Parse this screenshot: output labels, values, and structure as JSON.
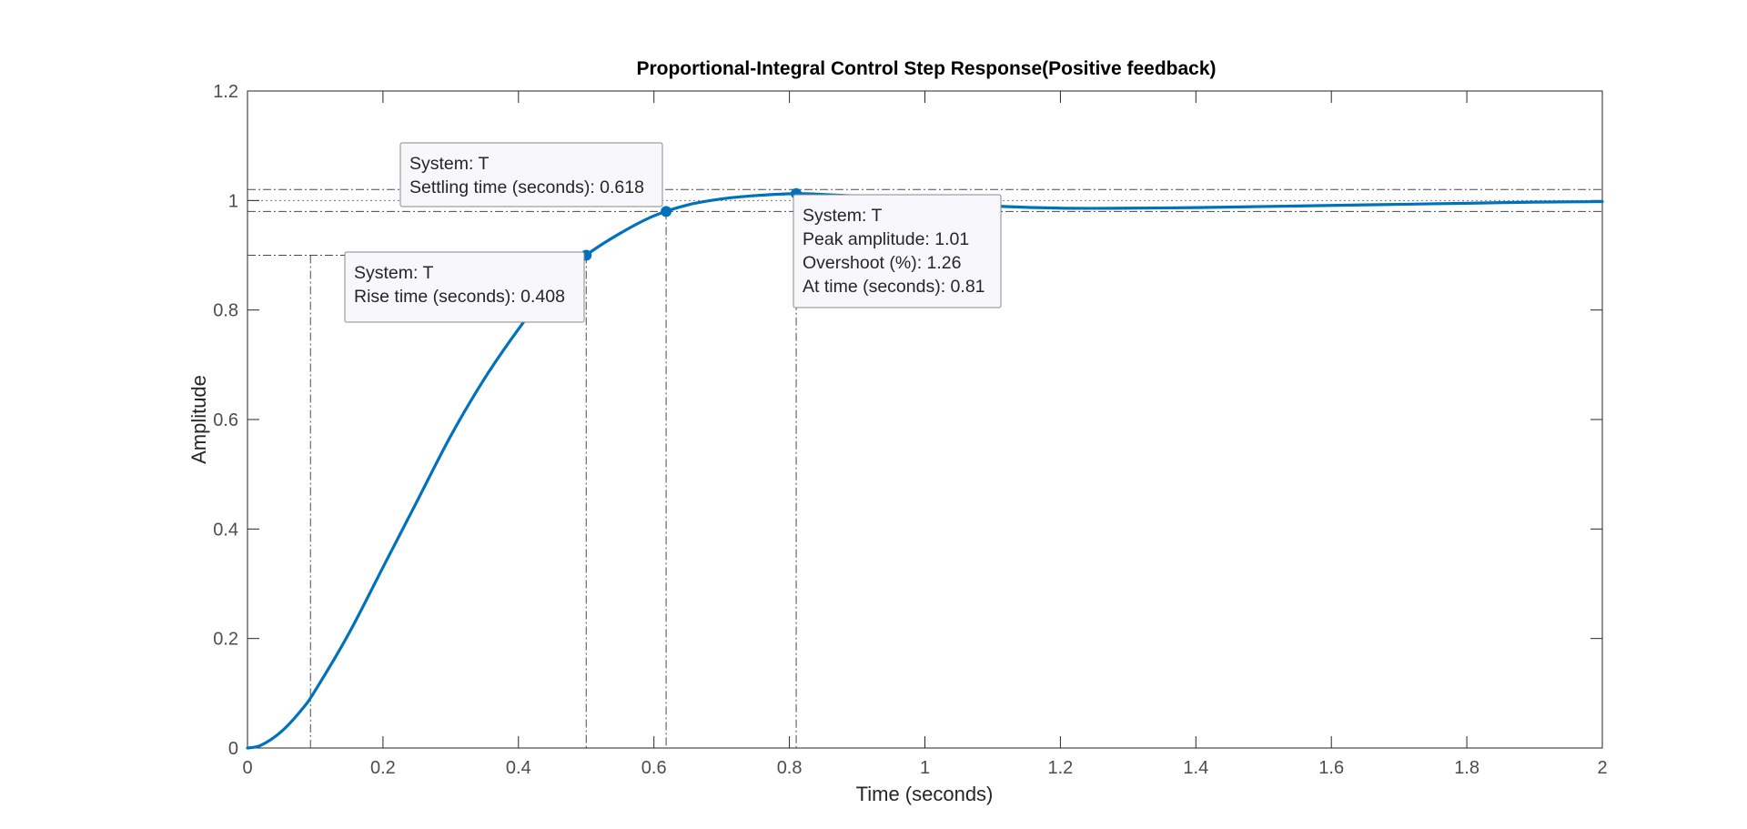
{
  "chart_data": {
    "type": "line",
    "title": "Proportional-Integral Control Step Response(Positive feedback)",
    "xlabel": "Time (seconds)",
    "ylabel": "Amplitude",
    "xlim": [
      0,
      2
    ],
    "ylim": [
      0,
      1.2
    ],
    "x_ticks": [
      "0",
      "0.2",
      "0.4",
      "0.6",
      "0.8",
      "1",
      "1.2",
      "1.4",
      "1.6",
      "1.8",
      "2"
    ],
    "y_ticks": [
      "0",
      "0.2",
      "0.4",
      "0.6",
      "0.8",
      "1",
      "1.2"
    ],
    "grid": false,
    "series": [
      {
        "name": "",
        "color": "#0072BD",
        "x": [
          0,
          0.02,
          0.05,
          0.08,
          0.1,
          0.15,
          0.2,
          0.25,
          0.3,
          0.35,
          0.4,
          0.45,
          0.5,
          0.55,
          0.6,
          0.65,
          0.7,
          0.75,
          0.81,
          0.85,
          0.9,
          0.95,
          1.0,
          1.05,
          1.1,
          1.2,
          1.3,
          1.4,
          1.5,
          1.6,
          1.7,
          1.8,
          1.9,
          2.0
        ],
        "y": [
          0,
          0.005,
          0.03,
          0.07,
          0.105,
          0.21,
          0.33,
          0.45,
          0.57,
          0.675,
          0.765,
          0.845,
          0.9,
          0.94,
          0.972,
          0.992,
          1.003,
          1.009,
          1.0126,
          1.011,
          1.008,
          1.004,
          0.999,
          0.994,
          0.99,
          0.986,
          0.986,
          0.987,
          0.989,
          0.991,
          0.993,
          0.995,
          0.997,
          0.998
        ]
      }
    ],
    "reference_lines": {
      "final_value": 1.0,
      "settling_band": [
        0.98,
        1.02
      ],
      "rise_band": [
        0.1,
        0.9
      ],
      "rise_start_time": 0.093,
      "rise_end_time": 0.5
    },
    "annotations": [
      {
        "kind": "rise",
        "x": 0.5,
        "y": 0.9,
        "lines": [
          "System: T",
          "Rise time (seconds): 0.408"
        ]
      },
      {
        "kind": "settling",
        "x": 0.618,
        "y": 0.98,
        "lines": [
          "System: T",
          "Settling time (seconds): 0.618"
        ]
      },
      {
        "kind": "peak",
        "x": 0.81,
        "y": 1.0126,
        "lines": [
          "System: T",
          "Peak amplitude: 1.01",
          "Overshoot (%): 1.26",
          "At time (seconds): 0.81"
        ]
      }
    ]
  }
}
